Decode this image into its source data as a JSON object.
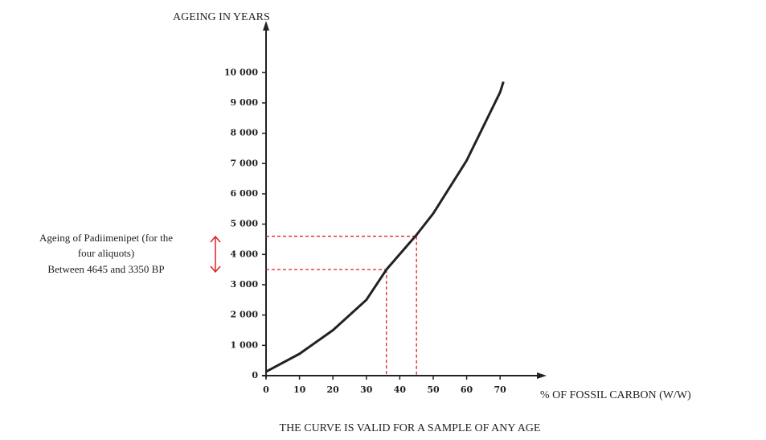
{
  "chart_data": {
    "type": "line",
    "y_label": "AGEING IN YEARS",
    "x_label": "% OF FOSSIL CARBON (W/W)",
    "caption": "THE CURVE IS VALID FOR A SAMPLE OF ANY AGE",
    "annotation": [
      "Ageing  of Padiimenipet (for the",
      "four aliquots)",
      "Between 4645 and 3350 BP"
    ],
    "x": [
      0,
      10,
      20,
      30,
      36,
      45,
      50,
      60,
      70,
      71
    ],
    "series": [
      {
        "color": "#222222",
        "values": [
          130,
          720,
          1500,
          2500,
          3500,
          4645,
          5350,
          7100,
          9350,
          9700
        ]
      }
    ],
    "reference_points": [
      {
        "x": 36,
        "y": 3500
      },
      {
        "x": 45,
        "y": 4600
      }
    ],
    "reference_color": "#e02020",
    "xlim": [
      0,
      82.7
    ],
    "ylim": [
      0,
      11600
    ],
    "xticks": [
      0,
      10,
      20,
      30,
      40,
      50,
      60,
      70
    ],
    "yticks": [
      0,
      {
        "value": 1000,
        "label": "1 000"
      },
      {
        "value": 2000,
        "label": "2 000"
      },
      {
        "value": 3000,
        "label": "3 000"
      },
      {
        "value": 4000,
        "label": "4 000"
      },
      {
        "value": 5000,
        "label": "5 000"
      },
      {
        "value": 6000,
        "label": "6 000"
      },
      {
        "value": 7000,
        "label": "7 000"
      },
      {
        "value": 8000,
        "label": "8 000"
      },
      {
        "value": 9000,
        "label": "9 000"
      },
      {
        "value": 10000,
        "label": "10 000"
      }
    ]
  }
}
